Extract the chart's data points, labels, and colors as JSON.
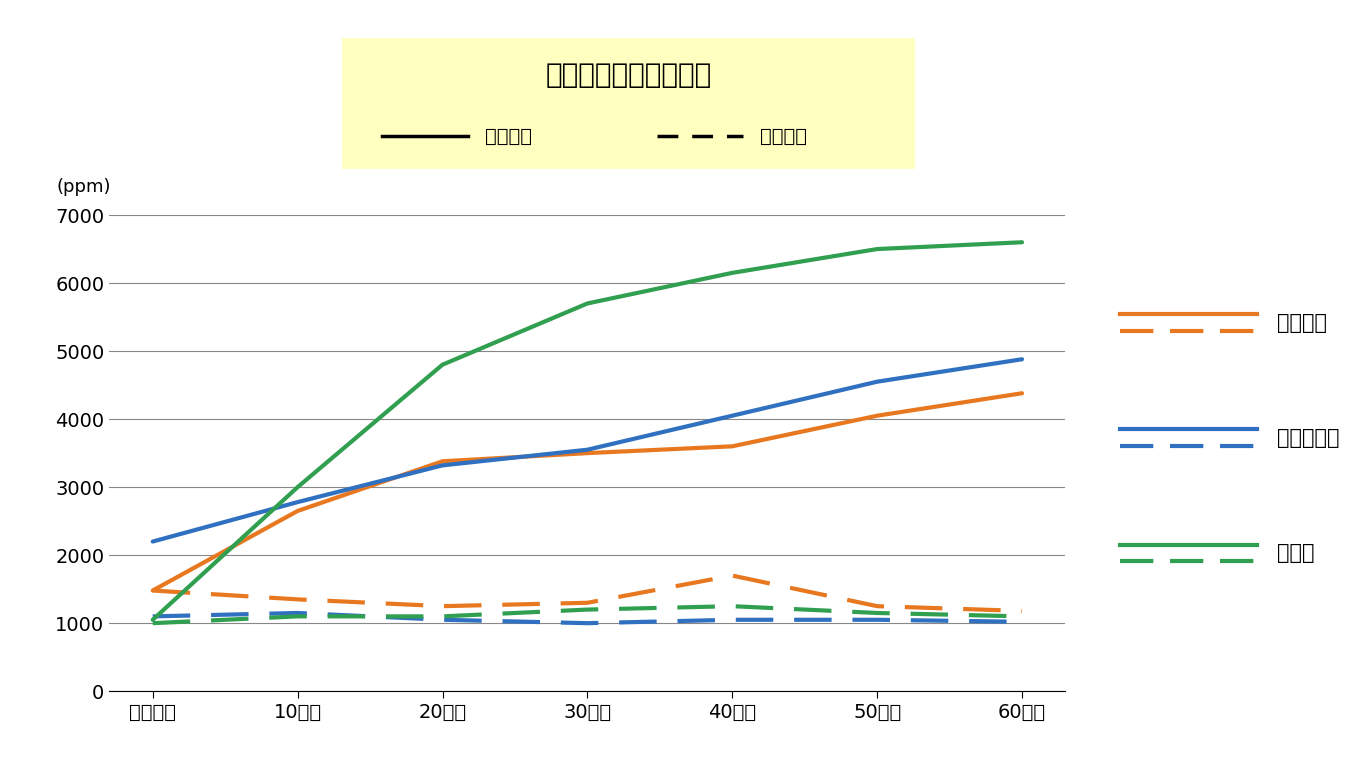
{
  "title": "車内の二酸化炭素濃度",
  "ylabel": "(ppm)",
  "ylim": [
    0,
    7000
  ],
  "yticks": [
    0,
    1000,
    2000,
    3000,
    4000,
    5000,
    6000,
    7000
  ],
  "x_labels": [
    "スタート",
    "10分後",
    "20分後",
    "30分後",
    "40分後",
    "50分後",
    "60分後"
  ],
  "legend_solid": "外気導入",
  "legend_dashed": "内気循環",
  "series": {
    "高速道路": {
      "color": "#E87820",
      "solid": [
        1480,
        2650,
        3380,
        3500,
        3600,
        4050,
        4380
      ],
      "dashed": [
        1480,
        1350,
        1250,
        1300,
        1700,
        1250,
        1180
      ]
    },
    "郊外・山道": {
      "color": "#3070C0",
      "solid": [
        2200,
        2780,
        3320,
        3550,
        4050,
        4550,
        4880
      ],
      "dashed": [
        1100,
        1150,
        1050,
        1000,
        1050,
        1050,
        1020
      ]
    },
    "市街地": {
      "color": "#30A050",
      "solid": [
        1050,
        3000,
        4800,
        5700,
        6150,
        6500,
        6600
      ],
      "dashed": [
        1000,
        1100,
        1100,
        1200,
        1250,
        1150,
        1100
      ]
    }
  },
  "background_color": "#ffffff",
  "title_box_color": "#FFFFC0",
  "grid_color": "#888888",
  "line_width": 3.0
}
